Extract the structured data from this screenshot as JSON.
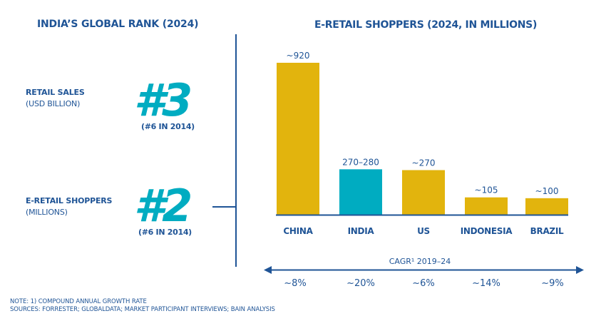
{
  "left_panel": {
    "title": "INDIA’S GLOBAL RANK (2024)",
    "metrics": [
      {
        "label": "RETAIL SALES",
        "sublabel": "(USD BILLION)",
        "rank": "#3",
        "previous": "(#6 IN 2014)"
      },
      {
        "label": "E-RETAIL SHOPPERS",
        "sublabel": "(MILLIONS)",
        "rank": "#2",
        "previous": "(#6 IN 2014)"
      }
    ]
  },
  "colors": {
    "navy": "#1F5496",
    "teal": "#00ACC1",
    "gold": "#E2B40D"
  },
  "chart_data": {
    "type": "bar",
    "title": "E-RETAIL SHOPPERS (2024, IN MILLIONS)",
    "xlabel": "",
    "ylabel": "",
    "ylim": [
      0,
      920
    ],
    "grid": false,
    "categories": [
      "CHINA",
      "INDIA",
      "US",
      "INDONESIA",
      "BRAZIL"
    ],
    "values": [
      920,
      275,
      270,
      105,
      100
    ],
    "data_labels": [
      "~920",
      "270–280",
      "~270",
      "~105",
      "~100"
    ],
    "highlight": "INDIA",
    "cagr": {
      "label": "CAGR¹ 2019–24",
      "values": [
        "~8%",
        "~20%",
        "~6%",
        "~14%",
        "~9%"
      ]
    }
  },
  "footnotes": {
    "note": "NOTE: 1) COMPOUND ANNUAL GROWTH RATE",
    "sources": "SOURCES: FORRESTER; GLOBALDATA; MARKET PARTICIPANT INTERVIEWS; BAIN ANALYSIS"
  }
}
